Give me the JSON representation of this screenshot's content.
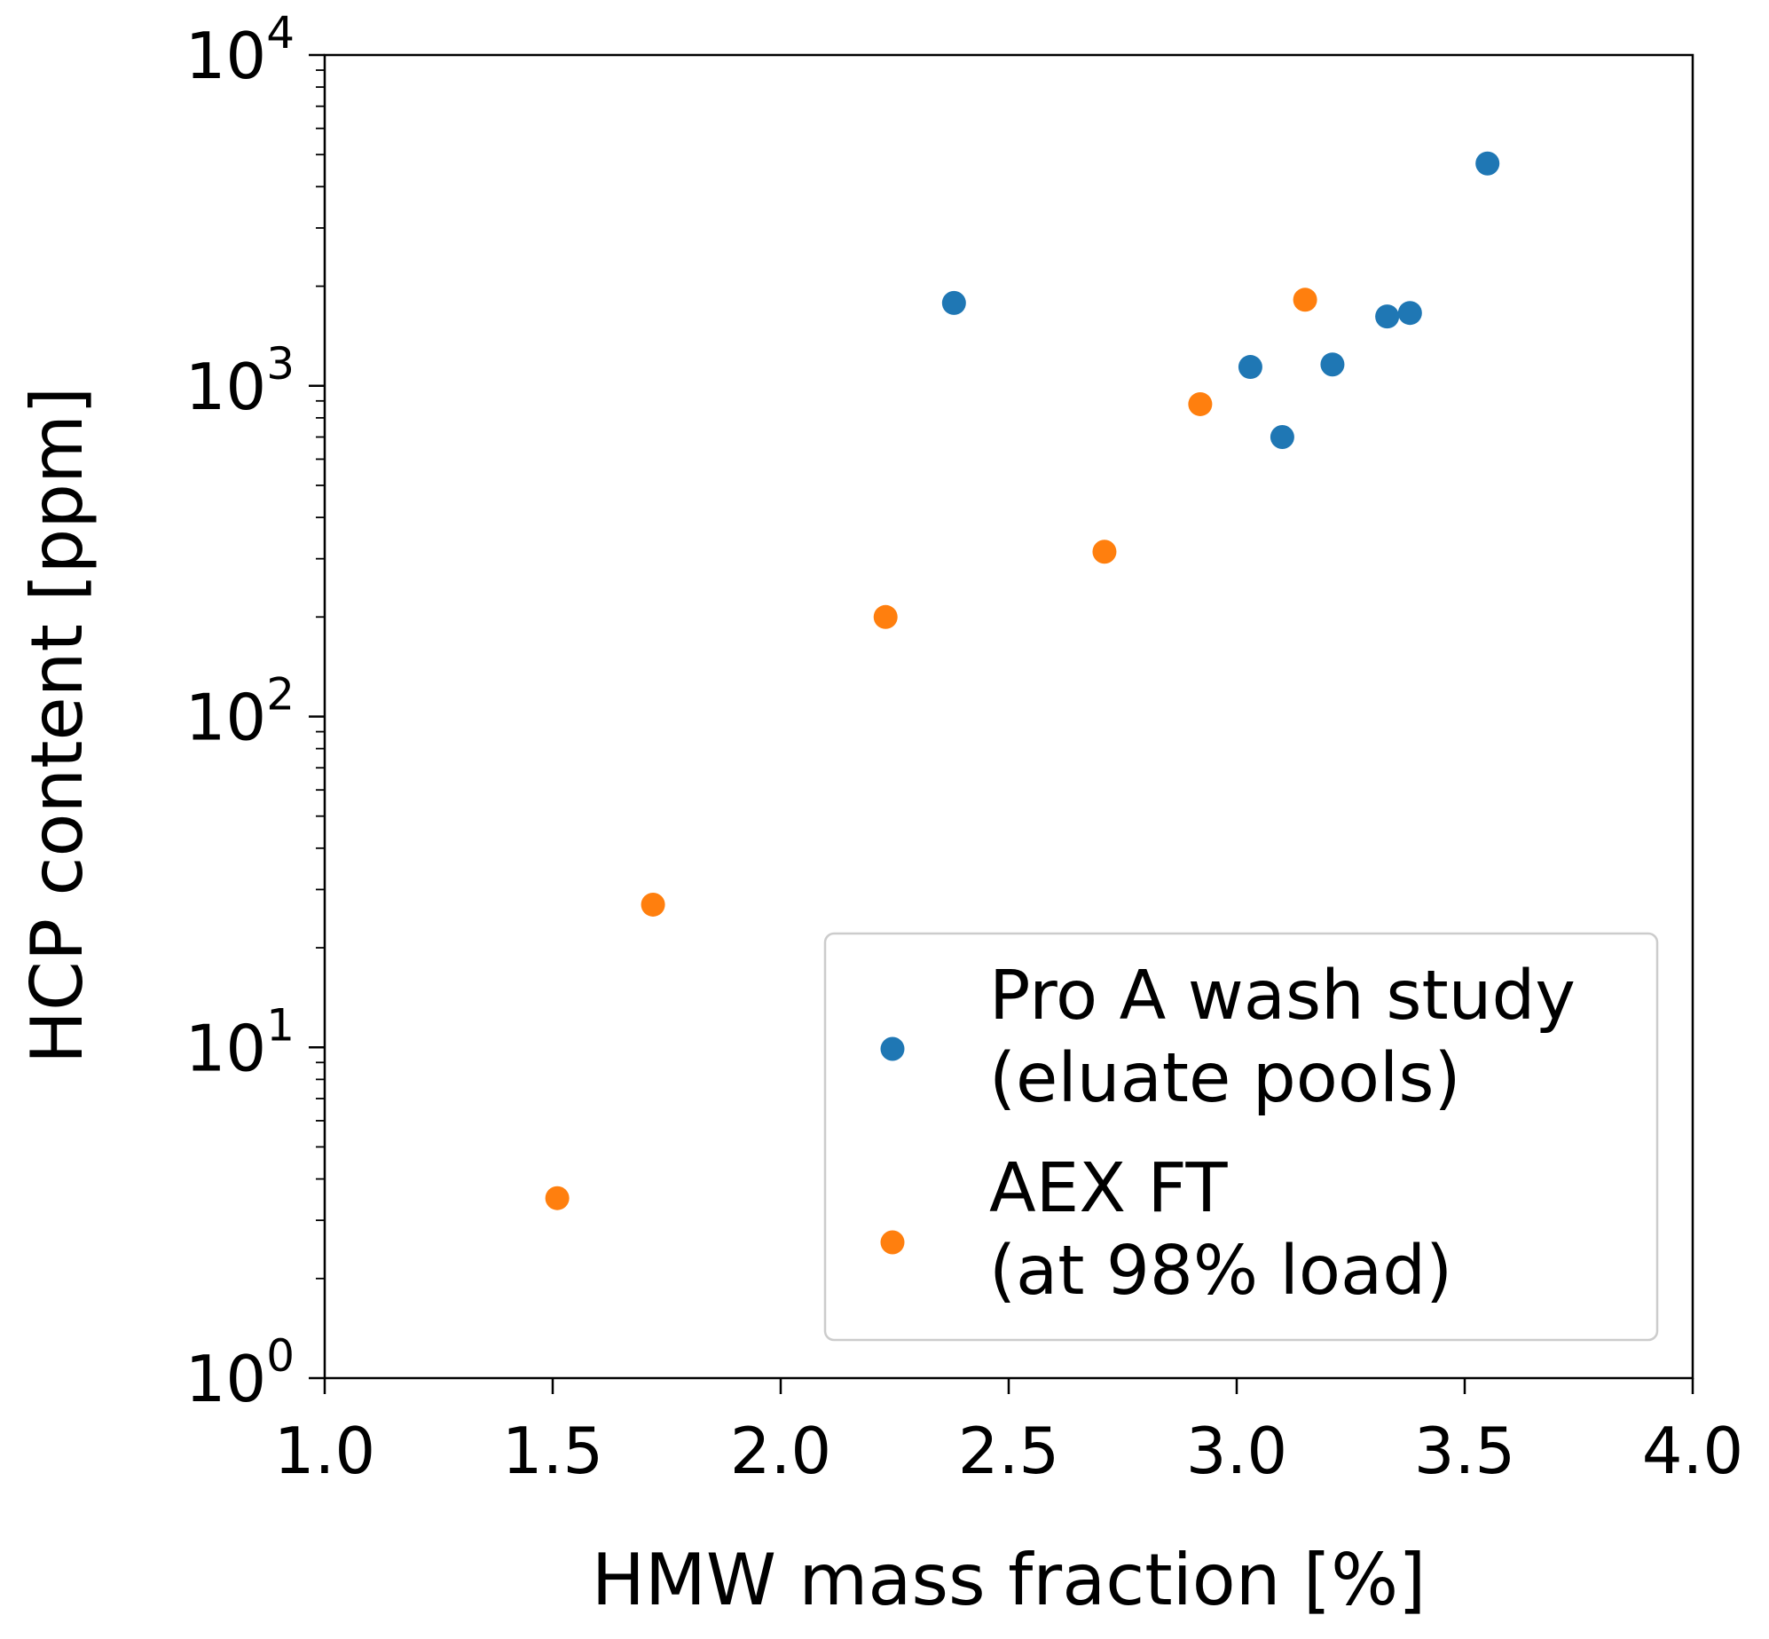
{
  "chart_data": {
    "type": "scatter",
    "xlabel": "HMW mass fraction [%]",
    "ylabel": "HCP content [ppm]",
    "xlim": [
      1.0,
      4.0
    ],
    "ylim": [
      1,
      10000
    ],
    "yscale": "log",
    "x_ticks": [
      1.0,
      1.5,
      2.0,
      2.5,
      3.0,
      3.5,
      4.0
    ],
    "x_tick_labels": [
      "1.0",
      "1.5",
      "2.0",
      "2.5",
      "3.0",
      "3.5",
      "4.0"
    ],
    "y_ticks": [
      1,
      10,
      100,
      1000,
      10000
    ],
    "y_tick_labels": [
      {
        "base": "10",
        "exp": "0"
      },
      {
        "base": "10",
        "exp": "1"
      },
      {
        "base": "10",
        "exp": "2"
      },
      {
        "base": "10",
        "exp": "3"
      },
      {
        "base": "10",
        "exp": "4"
      }
    ],
    "grid": false,
    "legend_position": "lower-right",
    "series": [
      {
        "name": "Pro A wash study (eluate pools)",
        "legend_lines": [
          "Pro A wash study",
          "(eluate pools)"
        ],
        "color": "#1f77b4",
        "points": [
          {
            "x": 2.38,
            "y": 1780
          },
          {
            "x": 3.03,
            "y": 1140
          },
          {
            "x": 3.1,
            "y": 700
          },
          {
            "x": 3.21,
            "y": 1160
          },
          {
            "x": 3.33,
            "y": 1620
          },
          {
            "x": 3.38,
            "y": 1660
          },
          {
            "x": 3.55,
            "y": 4700
          }
        ]
      },
      {
        "name": "AEX FT (at 98% load)",
        "legend_lines": [
          "AEX FT",
          "(at 98% load)"
        ],
        "color": "#ff7f0e",
        "points": [
          {
            "x": 1.51,
            "y": 3.5
          },
          {
            "x": 1.72,
            "y": 27
          },
          {
            "x": 2.23,
            "y": 200
          },
          {
            "x": 2.71,
            "y": 315
          },
          {
            "x": 2.92,
            "y": 880
          },
          {
            "x": 3.15,
            "y": 1820
          }
        ]
      }
    ]
  }
}
